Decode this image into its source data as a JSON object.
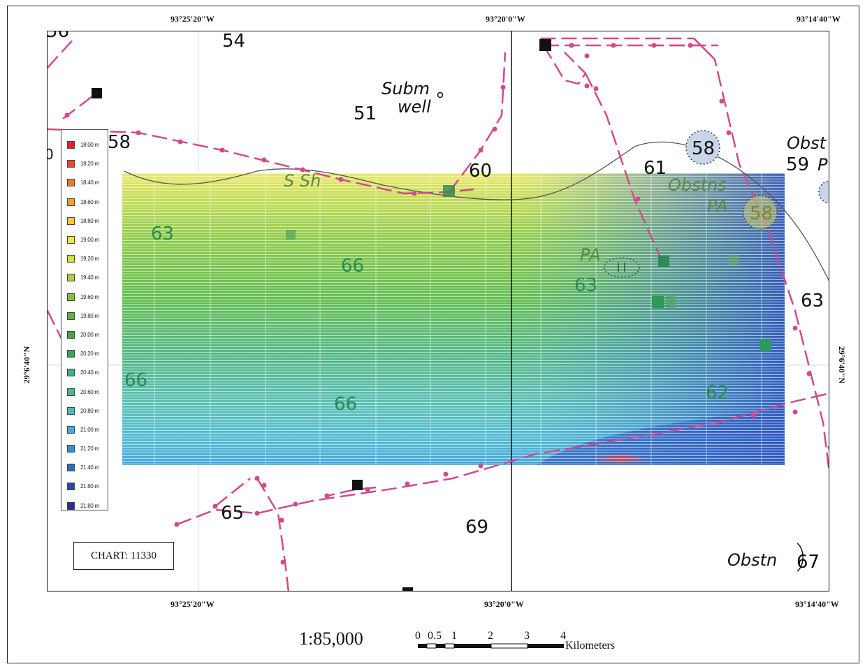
{
  "coordinates": {
    "top": [
      "93°25'20\"W",
      "93°20'0\"W",
      "93°14'40\"W"
    ],
    "bottom": [
      "93°25'20\"W",
      "93°20'0\"W",
      "93°14'40\"W"
    ],
    "left": "29°6'40\"N",
    "right": "29°6'40\"N"
  },
  "legend": [
    {
      "label": "18.00 m",
      "color": "#e8202a"
    },
    {
      "label": "18.20 m",
      "color": "#ee4a28"
    },
    {
      "label": "18.40 m",
      "color": "#f07a2c"
    },
    {
      "label": "18.60 m",
      "color": "#f5a02e"
    },
    {
      "label": "18.80 m",
      "color": "#f7c83a"
    },
    {
      "label": "19.00 m",
      "color": "#f4e63a"
    },
    {
      "label": "19.20 m",
      "color": "#d2de3c"
    },
    {
      "label": "19.40 m",
      "color": "#a8cf3e"
    },
    {
      "label": "19.60 m",
      "color": "#82c23e"
    },
    {
      "label": "19.80 m",
      "color": "#5cb33e"
    },
    {
      "label": "20.00 m",
      "color": "#3ea83e"
    },
    {
      "label": "20.20 m",
      "color": "#36a652"
    },
    {
      "label": "20.40 m",
      "color": "#44ad78"
    },
    {
      "label": "20.60 m",
      "color": "#4ab59a"
    },
    {
      "label": "20.80 m",
      "color": "#46bcc0"
    },
    {
      "label": "21.00 m",
      "color": "#3eb0e0"
    },
    {
      "label": "21.20 m",
      "color": "#3490d6"
    },
    {
      "label": "21.40 m",
      "color": "#2a6cc6"
    },
    {
      "label": "21.60 m",
      "color": "#2448b0"
    },
    {
      "label": "21.80 m",
      "color": "#2a2e9a"
    }
  ],
  "soundings": [
    "54",
    "51",
    "58",
    "60",
    "61",
    "58",
    "59",
    "63",
    "66",
    "63",
    "63",
    "66",
    "66",
    "62",
    "65",
    "69",
    "67",
    "58"
  ],
  "labels": {
    "subm": "Subm",
    "well": "well",
    "s_sh": "S Sh",
    "obsts": "Obstns",
    "pa1": "PA",
    "pa2": "PA",
    "obst_cut": "Obst",
    "p_cut": "P",
    "obstn": "Obstn",
    "partial": "56",
    "partial2": "0"
  },
  "chart_box": "CHART: 11330",
  "scale": "1:85,000",
  "scalebar": {
    "ticks": [
      "0",
      "0.5",
      "1",
      "2",
      "3",
      "4"
    ],
    "unit": "Kilometers"
  }
}
